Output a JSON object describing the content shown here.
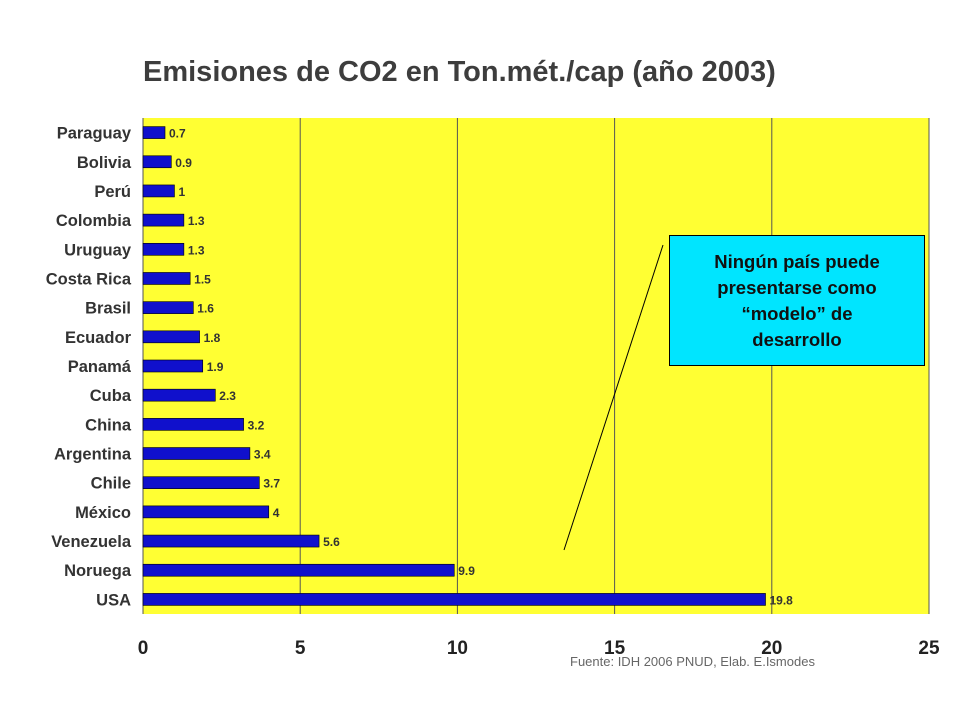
{
  "chart_data": {
    "type": "bar",
    "orientation": "horizontal",
    "title": "Emisiones de CO2 en Ton.mét./cap (año 2003)",
    "categories": [
      "Paraguay",
      "Bolivia",
      "Perú",
      "Colombia",
      "Uruguay",
      "Costa Rica",
      "Brasil",
      "Ecuador",
      "Panamá",
      "Cuba",
      "China",
      "Argentina",
      "Chile",
      "México",
      "Venezuela",
      "Noruega",
      "USA"
    ],
    "values": [
      0.7,
      0.9,
      1,
      1.3,
      1.3,
      1.5,
      1.6,
      1.8,
      1.9,
      2.3,
      3.2,
      3.4,
      3.7,
      4,
      5.6,
      9.9,
      19.8
    ],
    "value_labels": [
      "0.7",
      "0.9",
      "1",
      "1.3",
      "1.3",
      "1.5",
      "1.6",
      "1.8",
      "1.9",
      "2.3",
      "3.2",
      "3.4",
      "3.7",
      "4",
      "5.6",
      "9.9",
      "19.8"
    ],
    "xlim": [
      0,
      25
    ],
    "x_ticks": [
      "0",
      "5",
      "10",
      "15",
      "20",
      "25"
    ],
    "grid": true,
    "colors": {
      "bar": "#1010cc",
      "plot_background": "#ffff33",
      "gridline": "#555555"
    },
    "annotation": {
      "lines": [
        "Ningún país puede",
        "presentarse como",
        "“modelo” de",
        "desarrollo"
      ],
      "background": "#00e5ff"
    },
    "source": "Fuente: IDH 2006 PNUD, Elab. E.Ismodes"
  }
}
